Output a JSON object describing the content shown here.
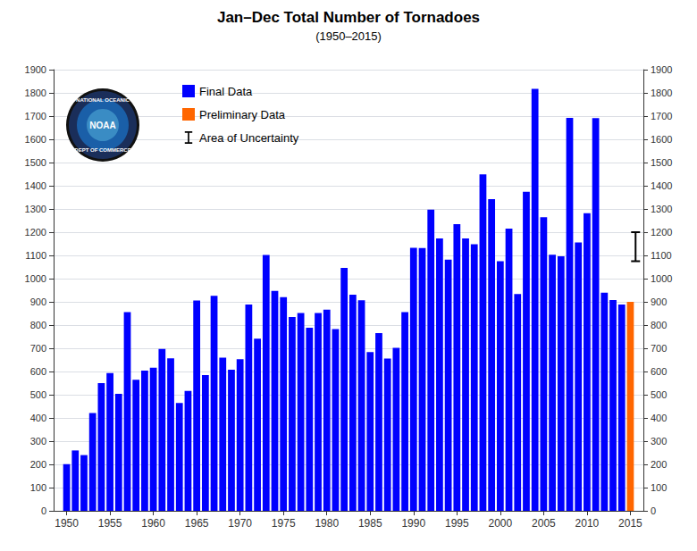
{
  "chart_data": {
    "type": "bar",
    "title": "Jan–Dec Total Number of Tornadoes",
    "subtitle": "(1950–2015)",
    "series": [
      {
        "name": "Final Data",
        "color": "#0000FF",
        "x": [
          1950,
          1951,
          1952,
          1953,
          1954,
          1955,
          1956,
          1957,
          1958,
          1959,
          1960,
          1961,
          1962,
          1963,
          1964,
          1965,
          1966,
          1967,
          1968,
          1969,
          1970,
          1971,
          1972,
          1973,
          1974,
          1975,
          1976,
          1977,
          1978,
          1979,
          1980,
          1981,
          1982,
          1983,
          1984,
          1985,
          1986,
          1987,
          1988,
          1989,
          1990,
          1991,
          1992,
          1993,
          1994,
          1995,
          1996,
          1997,
          1998,
          1999,
          2000,
          2001,
          2002,
          2003,
          2004,
          2005,
          2006,
          2007,
          2008,
          2009,
          2010,
          2011,
          2012,
          2013,
          2014
        ],
        "values": [
          201,
          260,
          240,
          421,
          550,
          593,
          504,
          856,
          564,
          604,
          616,
          697,
          657,
          464,
          516,
          906,
          585,
          926,
          660,
          608,
          653,
          888,
          741,
          1102,
          947,
          920,
          835,
          852,
          788,
          852,
          866,
          783,
          1046,
          931,
          907,
          684,
          765,
          656,
          702,
          856,
          1133,
          1132,
          1297,
          1173,
          1082,
          1235,
          1173,
          1148,
          1449,
          1342,
          1075,
          1215,
          934,
          1374,
          1817,
          1264,
          1103,
          1096,
          1692,
          1156,
          1282,
          1691,
          939,
          908,
          888
        ]
      },
      {
        "name": "Preliminary Data",
        "color": "#FF6600",
        "x": [
          2015
        ],
        "values": [
          900
        ]
      },
      {
        "name": "Area of Uncertainty",
        "type": "errorbar",
        "x": [
          2015
        ],
        "low": [
          1075
        ],
        "high": [
          1200
        ]
      }
    ],
    "xlim": [
      1948.5,
      2016.5
    ],
    "xticks": [
      1950,
      1955,
      1960,
      1965,
      1970,
      1975,
      1980,
      1985,
      1990,
      1995,
      2000,
      2005,
      2010,
      2015
    ],
    "ylim": [
      0,
      1900
    ],
    "yticks": [
      0,
      100,
      200,
      300,
      400,
      500,
      600,
      700,
      800,
      900,
      1000,
      1100,
      1200,
      1300,
      1400,
      1500,
      1600,
      1700,
      1800,
      1900
    ],
    "y2lim": [
      0,
      1900
    ],
    "y2ticks": [
      0,
      100,
      200,
      300,
      400,
      500,
      600,
      700,
      800,
      900,
      1000,
      1100,
      1200,
      1300,
      1400,
      1500,
      1600,
      1700,
      1800,
      1900
    ],
    "grid": true,
    "legend": "upper left",
    "annotations": [
      "NATIONAL OCEANIC",
      "NOAA",
      "DEPT OF COMMERCE"
    ]
  }
}
